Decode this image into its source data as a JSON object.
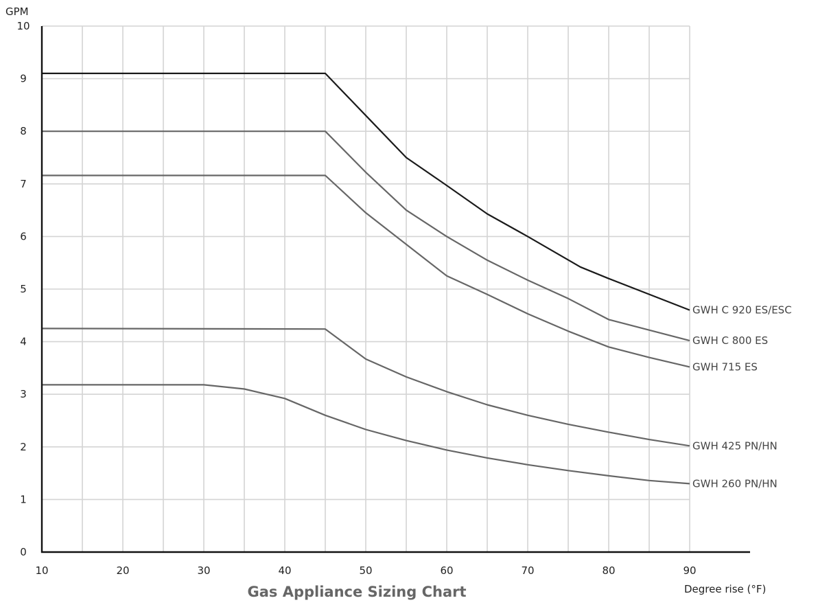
{
  "chart_data": {
    "type": "line",
    "title": "Gas Appliance Sizing Chart",
    "xlabel": "Degree rise (°F)",
    "ylabel": "GPM",
    "xlim": [
      10,
      90
    ],
    "ylim": [
      0,
      10
    ],
    "x_ticks": [
      10,
      20,
      30,
      40,
      50,
      60,
      70,
      80,
      90
    ],
    "y_ticks": [
      0,
      1,
      2,
      3,
      4,
      5,
      6,
      7,
      8,
      9,
      10
    ],
    "grid": true,
    "series": [
      {
        "name": "GWH C 920 ES/ESC",
        "color": "#1a1a1a",
        "points": [
          [
            10,
            9.1
          ],
          [
            45,
            9.1
          ],
          [
            50,
            8.3
          ],
          [
            55,
            7.5
          ],
          [
            60,
            6.97
          ],
          [
            65,
            6.43
          ],
          [
            70,
            6.0
          ],
          [
            76.5,
            5.42
          ],
          [
            80,
            5.2
          ],
          [
            90,
            4.6
          ]
        ]
      },
      {
        "name": "GWH C 800 ES",
        "color": "#666666",
        "points": [
          [
            10,
            8.0
          ],
          [
            45,
            8.0
          ],
          [
            50,
            7.22
          ],
          [
            55,
            6.5
          ],
          [
            60,
            6.0
          ],
          [
            65,
            5.55
          ],
          [
            70,
            5.17
          ],
          [
            75,
            4.82
          ],
          [
            80,
            4.42
          ],
          [
            90,
            4.02
          ]
        ]
      },
      {
        "name": "GWH 715 ES",
        "color": "#666666",
        "points": [
          [
            10,
            7.16
          ],
          [
            45,
            7.16
          ],
          [
            50,
            6.45
          ],
          [
            55,
            5.85
          ],
          [
            60,
            5.25
          ],
          [
            65,
            4.9
          ],
          [
            70,
            4.53
          ],
          [
            75,
            4.2
          ],
          [
            80,
            3.9
          ],
          [
            85,
            3.7
          ],
          [
            90,
            3.52
          ]
        ]
      },
      {
        "name": "GWH 425 PN/HN",
        "color": "#666666",
        "points": [
          [
            10,
            4.25
          ],
          [
            45,
            4.24
          ],
          [
            50,
            3.67
          ],
          [
            55,
            3.33
          ],
          [
            60,
            3.05
          ],
          [
            65,
            2.8
          ],
          [
            70,
            2.6
          ],
          [
            75,
            2.43
          ],
          [
            80,
            2.28
          ],
          [
            85,
            2.14
          ],
          [
            90,
            2.02
          ]
        ]
      },
      {
        "name": "GWH 260 PN/HN",
        "color": "#666666",
        "points": [
          [
            10,
            3.18
          ],
          [
            30,
            3.18
          ],
          [
            35,
            3.1
          ],
          [
            40,
            2.92
          ],
          [
            45,
            2.6
          ],
          [
            50,
            2.33
          ],
          [
            55,
            2.12
          ],
          [
            60,
            1.94
          ],
          [
            65,
            1.79
          ],
          [
            70,
            1.66
          ],
          [
            75,
            1.55
          ],
          [
            80,
            1.45
          ],
          [
            85,
            1.36
          ],
          [
            90,
            1.3
          ]
        ]
      }
    ]
  }
}
